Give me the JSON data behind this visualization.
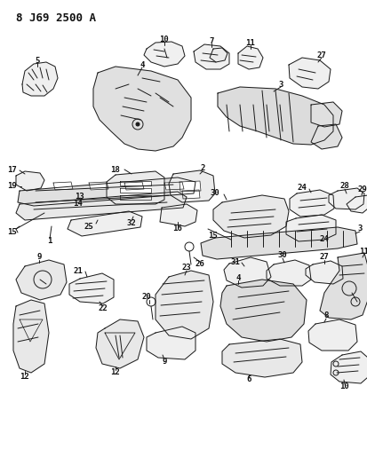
{
  "title": "8 J69 2500 A",
  "background_color": "#ffffff",
  "line_color": "#1a1a1a",
  "label_color": "#111111",
  "fig_width": 4.14,
  "fig_height": 5.33,
  "dpi": 100,
  "lw": 0.7,
  "title_fontsize": 9,
  "label_fontsize": 6.5
}
